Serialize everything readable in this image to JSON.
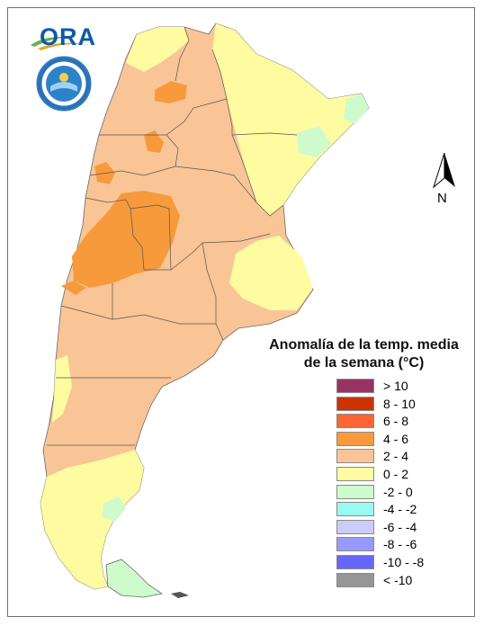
{
  "logo": {
    "text": "ORA"
  },
  "compass": {
    "label": "N"
  },
  "legend": {
    "title_line1": "Anomalía de la temp. media",
    "title_line2": "de la semana (°C)",
    "items": [
      {
        "label": "> 10",
        "color": "#993366"
      },
      {
        "label": "8 - 10",
        "color": "#cc3300"
      },
      {
        "label": "6 - 8",
        "color": "#ff6633"
      },
      {
        "label": "4 - 6",
        "color": "#f79a3c"
      },
      {
        "label": "2 - 4",
        "color": "#f9c596"
      },
      {
        "label": "0 - 2",
        "color": "#fefba0"
      },
      {
        "label": "-2 - 0",
        "color": "#cdfbcc"
      },
      {
        "label": "-4 - -2",
        "color": "#98fbf1"
      },
      {
        "label": "-6 - -4",
        "color": "#ccccfb"
      },
      {
        "label": "-8 - -6",
        "color": "#9999fb"
      },
      {
        "label": "-10 - -8",
        "color": "#6666fb"
      },
      {
        "label": "< -10",
        "color": "#969696"
      }
    ]
  }
}
